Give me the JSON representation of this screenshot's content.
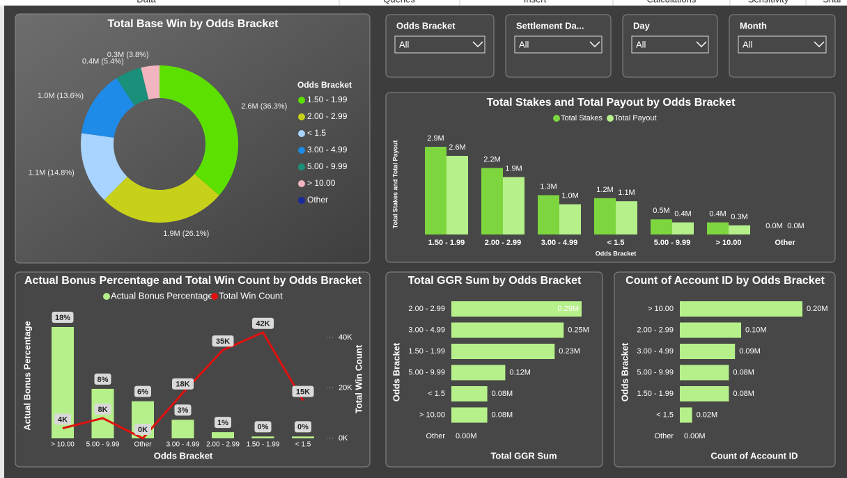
{
  "header": {
    "tabs": [
      "Data",
      "Queries",
      "Insert",
      "Calculations",
      "Sensitivity",
      "Shar"
    ]
  },
  "filters": [
    {
      "label": "Odds Bracket",
      "value": "All"
    },
    {
      "label": "Settlement Da...",
      "value": "All"
    },
    {
      "label": "Day",
      "value": "All"
    },
    {
      "label": "Month",
      "value": "All"
    }
  ],
  "chart_data": [
    {
      "type": "pie",
      "title": "Total Base Win by Odds Bracket",
      "legend_title": "Odds Bracket",
      "legend": "right",
      "categories": [
        "1.50 - 1.99",
        "2.00 - 2.99",
        "< 1.5",
        "3.00 - 4.99",
        "5.00 - 9.99",
        "> 10.00",
        "Other"
      ],
      "values": [
        36.3,
        26.1,
        14.8,
        13.6,
        5.4,
        3.8,
        0
      ],
      "value_labels": [
        "2.6M (36.3%)",
        "1.9M (26.1%)",
        "1.1M (14.8%)",
        "1.0M (13.6%)",
        "0.4M (5.4%)",
        "0.3M (3.8%)",
        null
      ],
      "colors": [
        "#5ce000",
        "#c8d11a",
        "#a8d4ff",
        "#1e8be8",
        "#1a8f7a",
        "#f2b4bf",
        "#1a2a9a"
      ]
    },
    {
      "type": "grouped_bar",
      "title": "Total Stakes and Total Payout by Odds Bracket",
      "x_label": "Odds Bracket",
      "y_label": "Total Stakes and Total Payout",
      "categories": [
        "1.50 - 1.99",
        "2.00 - 2.99",
        "3.00 - 4.99",
        "< 1.5",
        "5.00 - 9.99",
        "> 10.00",
        "Other"
      ],
      "series": [
        {
          "name": "Total Stakes",
          "color": "#7ed63f",
          "values": [
            2900000,
            2200000,
            1300000,
            1200000,
            500000,
            400000,
            0
          ],
          "value_labels": [
            "2.9M",
            "2.2M",
            "1.3M",
            "1.2M",
            "0.5M",
            "0.4M",
            "0.0M"
          ]
        },
        {
          "name": "Total Payout",
          "color": "#b6f08a",
          "values": [
            2600000,
            1900000,
            1000000,
            1100000,
            400000,
            300000,
            0
          ],
          "value_labels": [
            "2.6M",
            "1.9M",
            "1.0M",
            "1.1M",
            "0.4M",
            "0.3M",
            "0.0M"
          ]
        }
      ]
    },
    {
      "type": "combo",
      "title": "Actual Bonus Percentage and Total Win Count by Odds Bracket",
      "x_label": "Odds Bracket",
      "y_label": "Actual Bonus Percentage",
      "y2_label": "Total Win Count",
      "categories": [
        "> 10.00",
        "5.00 - 9.99",
        "Other",
        "3.00 - 4.99",
        "2.00 - 2.99",
        "1.50 - 1.99",
        "< 1.5"
      ],
      "series": [
        {
          "name": "Actual Bonus Percentage",
          "type": "bar",
          "color": "#b6f08a",
          "values": [
            18,
            8,
            6,
            3,
            1,
            0.3,
            0.3
          ],
          "value_labels": [
            "18%",
            "8%",
            "6%",
            "3%",
            "1%",
            "0%",
            "0%"
          ]
        },
        {
          "name": "Total Win Count",
          "type": "line",
          "axis": "y2",
          "color": "#e0110f",
          "values": [
            4000,
            8000,
            0,
            18000,
            35000,
            42000,
            15000
          ],
          "value_labels": [
            "4K",
            "8K",
            "0K",
            "18K",
            "35K",
            "42K",
            "15K"
          ]
        }
      ],
      "y2lim": [
        0,
        48000
      ],
      "y2ticks": [
        {
          "value": 0,
          "label": "0K"
        },
        {
          "value": 20000,
          "label": "20K"
        },
        {
          "value": 40000,
          "label": "40K"
        }
      ]
    },
    {
      "type": "hbar",
      "title": "Total GGR Sum by Odds Bracket",
      "x_label": "Total GGR Sum",
      "y_label": "Odds Bracket",
      "color": "#b6f08a",
      "categories": [
        "2.00 - 2.99",
        "3.00 - 4.99",
        "1.50 - 1.99",
        "5.00 - 9.99",
        "< 1.5",
        "> 10.00",
        "Other"
      ],
      "values": [
        290000,
        250000,
        230000,
        120000,
        80000,
        80000,
        0
      ],
      "value_labels": [
        "0.29M",
        "0.25M",
        "0.23M",
        "0.12M",
        "0.08M",
        "0.08M",
        "0.00M"
      ]
    },
    {
      "type": "hbar",
      "title": "Count of Account ID by Odds Bracket",
      "x_label": "Count of Account ID",
      "y_label": "Odds Bracket",
      "color": "#b6f08a",
      "categories": [
        "> 10.00",
        "2.00 - 2.99",
        "3.00 - 4.99",
        "5.00 - 9.99",
        "1.50 - 1.99",
        "< 1.5",
        "Other"
      ],
      "values": [
        200000,
        100000,
        90000,
        80000,
        80000,
        20000,
        0
      ],
      "value_labels": [
        "0.20M",
        "0.10M",
        "0.09M",
        "0.08M",
        "0.08M",
        "0.02M",
        "0.00M"
      ]
    }
  ]
}
